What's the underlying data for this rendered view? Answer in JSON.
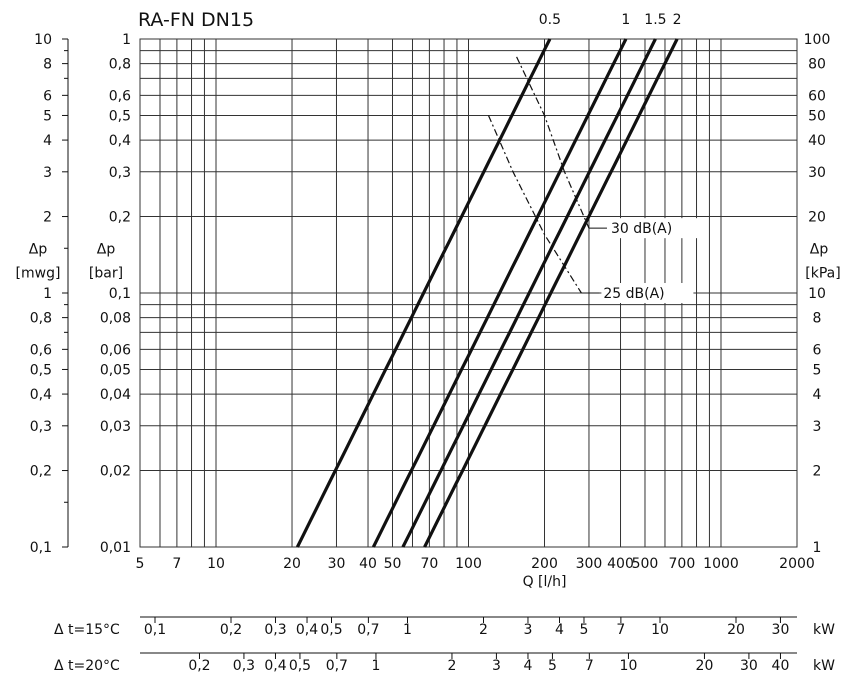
{
  "chart_data": {
    "type": "line",
    "title": "RA-FN  DN15",
    "x_scale": "log",
    "y_scale": "log",
    "xlim": [
      5,
      2000
    ],
    "ylim_bar": [
      0.01,
      1
    ],
    "xlabel": "Q [l/h]",
    "x_ticks": [
      5,
      7,
      10,
      20,
      30,
      40,
      50,
      70,
      100,
      200,
      300,
      400,
      500,
      700,
      1000,
      2000
    ],
    "x_tick_labels": [
      "5",
      "7",
      "10",
      "20",
      "30",
      "40",
      "50",
      "70",
      "100",
      "200",
      "300",
      "400",
      "500",
      "700",
      "1000",
      "2000"
    ],
    "y_left_mwg": {
      "label": [
        "Δp",
        "[mwg]"
      ],
      "ticks": [
        0.1,
        0.2,
        0.3,
        0.4,
        0.5,
        0.6,
        0.8,
        1,
        2,
        3,
        4,
        5,
        6,
        8,
        10
      ],
      "tick_labels": [
        "0,1",
        "0,2",
        "0,3",
        "0,4",
        "0,5",
        "0,6",
        "0,8",
        "1",
        "2",
        "3",
        "4",
        "5",
        "6",
        "8",
        "10"
      ]
    },
    "y_left_bar": {
      "label": [
        "Δp",
        "[bar]"
      ],
      "ticks": [
        0.01,
        0.02,
        0.03,
        0.04,
        0.05,
        0.06,
        0.08,
        0.1,
        0.2,
        0.3,
        0.4,
        0.5,
        0.6,
        0.8,
        1
      ],
      "tick_labels": [
        "0,01",
        "0,02",
        "0,03",
        "0,04",
        "0,05",
        "0,06",
        "0,08",
        "0,1",
        "0,2",
        "0,3",
        "0,4",
        "0,5",
        "0,6",
        "0,8",
        "1"
      ]
    },
    "y_right_kpa": {
      "label": [
        "Δp",
        "[kPa]"
      ],
      "ticks": [
        1,
        2,
        3,
        4,
        5,
        6,
        8,
        10,
        20,
        30,
        40,
        50,
        60,
        80,
        100
      ],
      "tick_labels": [
        "1",
        "2",
        "3",
        "4",
        "5",
        "6",
        "8",
        "10",
        "20",
        "30",
        "40",
        "50",
        "60",
        "80",
        "100"
      ]
    },
    "series": [
      {
        "name": "0.5",
        "kv": 0.21,
        "q_range": [
          21,
          210
        ]
      },
      {
        "name": "1",
        "kv": 0.42,
        "q_range": [
          42,
          420
        ]
      },
      {
        "name": "1.5",
        "kv": 0.55,
        "q_range": [
          55,
          550
        ]
      },
      {
        "name": "2",
        "kv": 0.67,
        "q_range": [
          67,
          670
        ]
      }
    ],
    "noise_lines": [
      {
        "label": "30  dB(A)",
        "points": [
          [
            155,
            0.85
          ],
          [
            200,
            0.5
          ],
          [
            240,
            0.3
          ],
          [
            300,
            0.18
          ]
        ]
      },
      {
        "label": "25  dB(A)",
        "points": [
          [
            120,
            0.5
          ],
          [
            150,
            0.3
          ],
          [
            200,
            0.17
          ],
          [
            280,
            0.1
          ]
        ]
      }
    ],
    "kw_scale_15": {
      "label": "Δ t=15°C",
      "unit": "kW",
      "values": [
        0.1,
        0.2,
        0.3,
        0.4,
        0.5,
        0.7,
        1,
        2,
        3,
        4,
        5,
        7,
        10,
        20,
        30
      ],
      "labels": [
        "0,1",
        "0,2",
        "0,3",
        "0,4",
        "0,5",
        "0,7",
        "1",
        "2",
        "3",
        "4",
        "5",
        "7",
        "10",
        "20",
        "30"
      ]
    },
    "kw_scale_20": {
      "label": "Δ t=20°C",
      "unit": "kW",
      "values": [
        0.2,
        0.3,
        0.4,
        0.5,
        0.7,
        1,
        2,
        3,
        4,
        5,
        7,
        10,
        20,
        30,
        40
      ],
      "labels": [
        "0,2",
        "0,3",
        "0,4",
        "0,5",
        "0,7",
        "1",
        "2",
        "3",
        "4",
        "5",
        "7",
        "10",
        "20",
        "30",
        "40"
      ]
    },
    "colors": {
      "ink": "#111111",
      "grid": "#333333",
      "background": "#ffffff"
    }
  }
}
